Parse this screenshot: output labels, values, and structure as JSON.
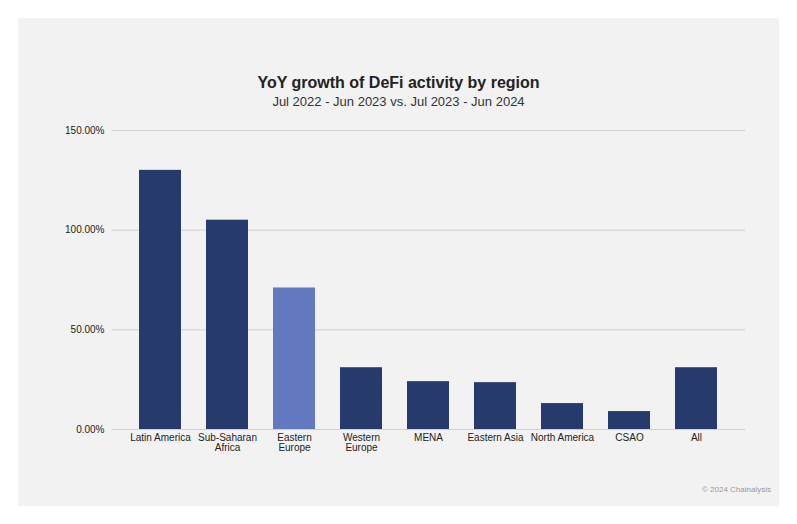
{
  "chart_data": {
    "type": "bar",
    "title": "YoY growth of DeFi activity by region",
    "subtitle": "Jul 2022 - Jun 2023 vs. Jul 2023 - Jun 2024",
    "source": "© 2024 Chainalysis",
    "categories": [
      "Latin America",
      "Sub-Saharan Africa",
      "Eastern Europe",
      "Western Europe",
      "MENA",
      "Eastern Asia",
      "North America",
      "CSAO",
      "All"
    ],
    "values": [
      130,
      105,
      71,
      31,
      24,
      23.5,
      13,
      9,
      31
    ],
    "colors": [
      "#263a6e",
      "#263a6e",
      "#6379bf",
      "#263a6e",
      "#263a6e",
      "#263a6e",
      "#263a6e",
      "#263a6e",
      "#263a6e"
    ],
    "ylim": [
      0,
      150
    ],
    "yticks": [
      {
        "value": 0,
        "label": "0.00%"
      },
      {
        "value": 50,
        "label": "50.00%"
      },
      {
        "value": 100,
        "label": "100.00%"
      },
      {
        "value": 150,
        "label": "150.00%"
      }
    ],
    "grid": true
  }
}
